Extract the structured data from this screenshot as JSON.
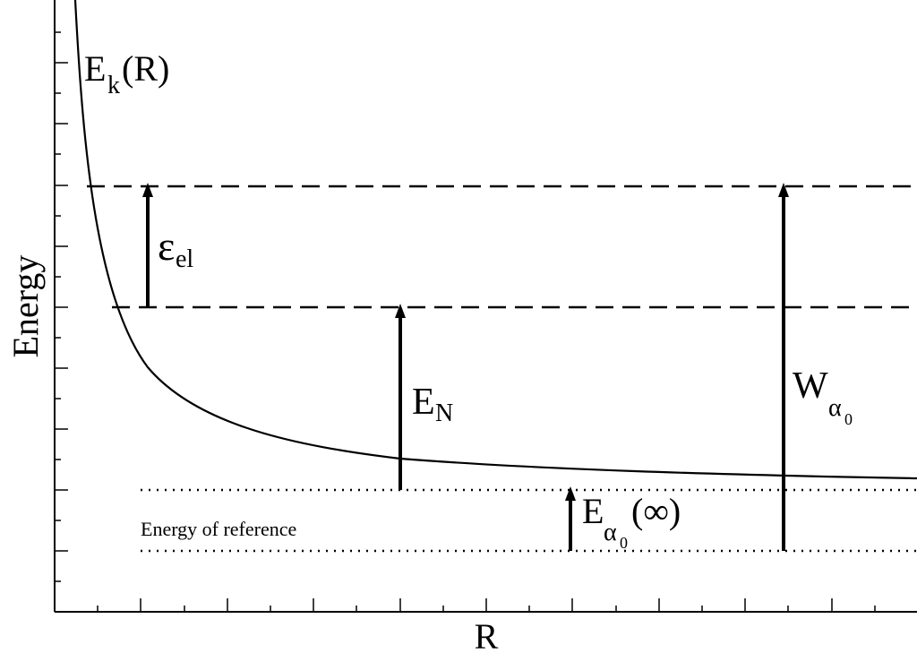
{
  "diagram": {
    "axis_x_label": "R",
    "axis_y_label": "Energy",
    "curve_label": {
      "main": "E",
      "sub": "k",
      "tail": "(R)"
    },
    "arrow_eps": {
      "main": "ε",
      "sub": "el"
    },
    "arrow_en": {
      "main": "E",
      "sub": "N"
    },
    "arrow_w": {
      "main": "W",
      "sub": "α",
      "subsub": "0"
    },
    "arrow_ea": {
      "main": "E",
      "sub": "α",
      "subsub": "0",
      "tail": "(∞)"
    },
    "reference_label": "Energy of reference",
    "line_color": "#000000"
  }
}
